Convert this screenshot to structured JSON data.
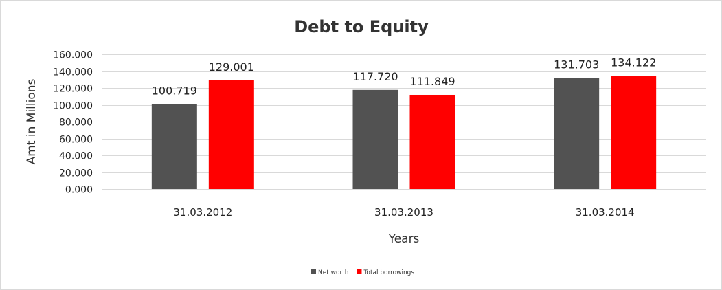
{
  "chart_data": {
    "type": "bar",
    "title": "Debt to Equity",
    "xlabel": "Years",
    "ylabel": "Amt in Millions",
    "categories": [
      "31.03.2012",
      "31.03.2013",
      "31.03.2014"
    ],
    "series": [
      {
        "name": "Net worth",
        "values": [
          100.719,
          117.72,
          131.703
        ],
        "labels": [
          "100.719",
          "117.720",
          "131.703"
        ],
        "color": "#525252"
      },
      {
        "name": "Total borrowings",
        "values": [
          129.001,
          111.849,
          134.122
        ],
        "labels": [
          "129.001",
          "111.849",
          "134.122"
        ],
        "color": "#ff0000"
      }
    ],
    "ylim": [
      0,
      160
    ],
    "yticks": [
      0,
      20,
      40,
      60,
      80,
      100,
      120,
      140,
      160
    ],
    "ytick_labels": [
      "0.000",
      "20.000",
      "40.000",
      "60.000",
      "80.000",
      "100.000",
      "120.000",
      "140.000",
      "160.000"
    ],
    "grid": true,
    "legend": "bottom"
  }
}
